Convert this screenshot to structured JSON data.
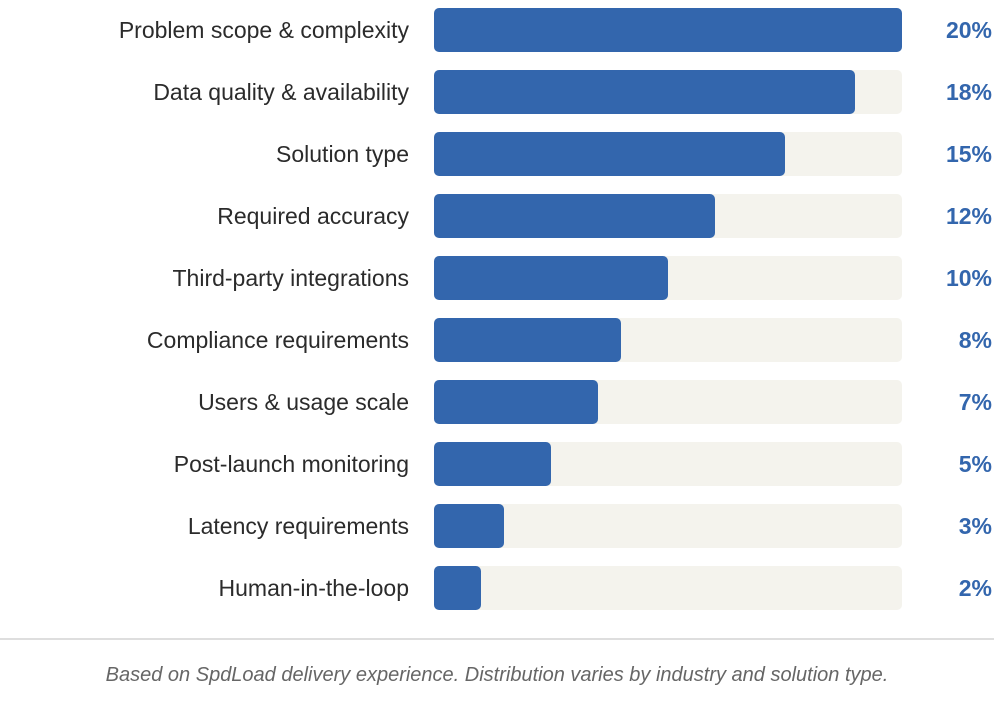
{
  "chart_data": {
    "type": "bar",
    "orientation": "horizontal",
    "categories": [
      "Problem scope & complexity",
      "Data quality & availability",
      "Solution type",
      "Required accuracy",
      "Third-party integrations",
      "Compliance requirements",
      "Users & usage scale",
      "Post-launch monitoring",
      "Latency requirements",
      "Human-in-the-loop"
    ],
    "values": [
      20,
      18,
      15,
      12,
      10,
      8,
      7,
      5,
      3,
      2
    ],
    "value_labels": [
      "20%",
      "18%",
      "15%",
      "12%",
      "10%",
      "8%",
      "7%",
      "5%",
      "3%",
      "2%"
    ],
    "unit": "%",
    "xlim": [
      0,
      20
    ],
    "grid": false,
    "colors": {
      "bar": "#3366ad",
      "track": "#f4f3ed",
      "value_text": "#3366ad",
      "label_text": "#2b2b2b"
    }
  },
  "footnote": "Based on SpdLoad delivery experience. Distribution varies by industry and solution type."
}
